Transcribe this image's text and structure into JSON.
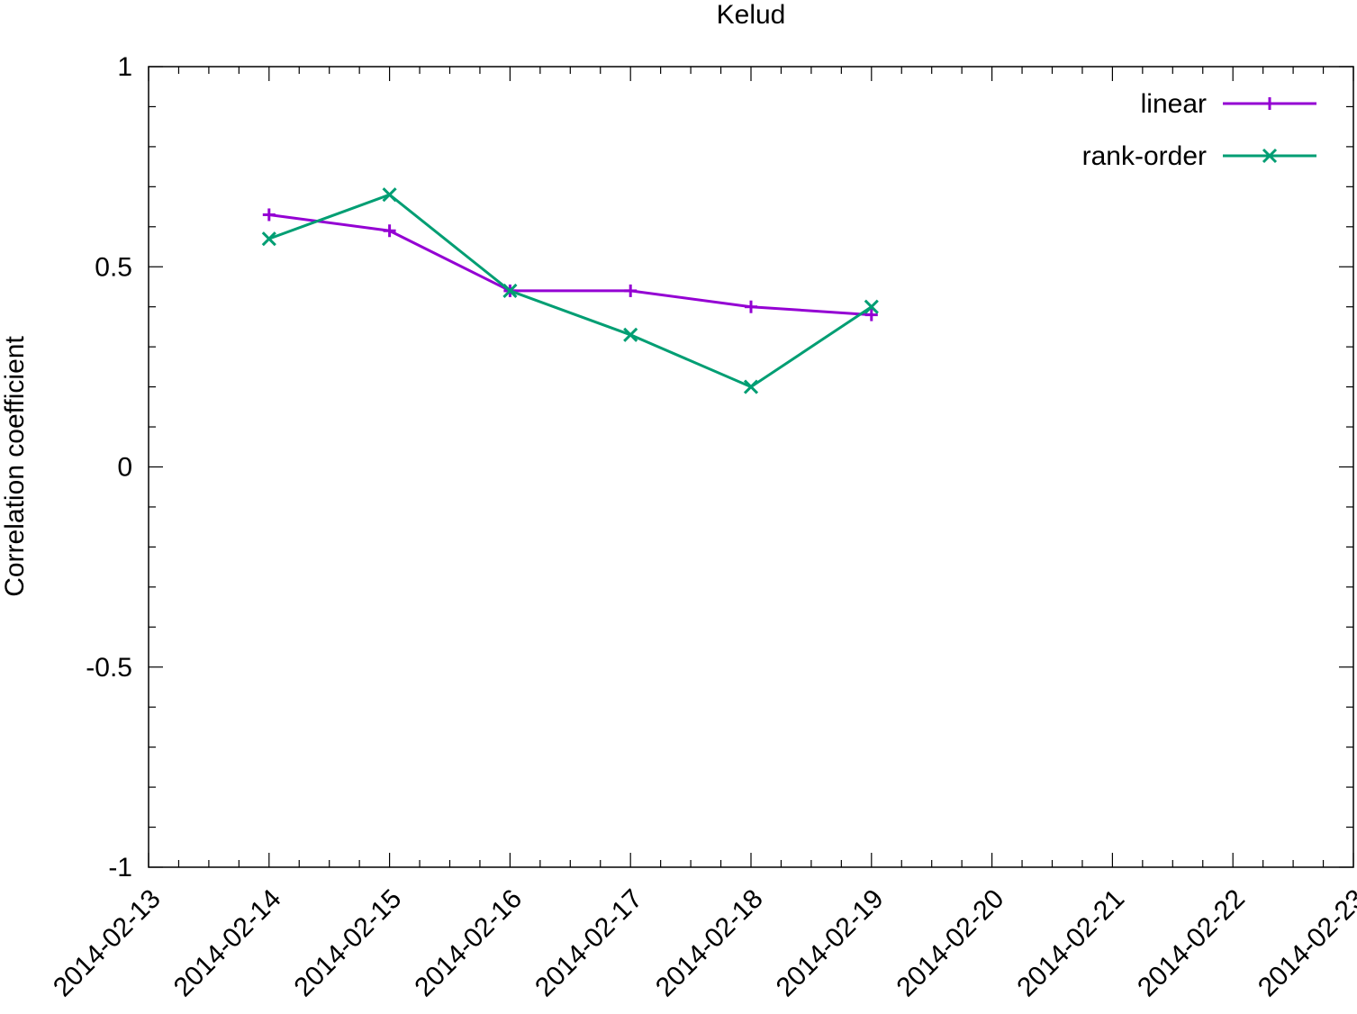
{
  "chart_data": {
    "type": "line",
    "title": "Kelud",
    "xlabel": "",
    "ylabel": "Correlation coefficient",
    "x_type": "date",
    "xlim": [
      "2014-02-13",
      "2014-02-23"
    ],
    "ylim": [
      -1,
      1
    ],
    "x_ticks": [
      "2014-02-13",
      "2014-02-14",
      "2014-02-15",
      "2014-02-16",
      "2014-02-17",
      "2014-02-18",
      "2014-02-19",
      "2014-02-20",
      "2014-02-21",
      "2014-02-22",
      "2014-02-23"
    ],
    "y_ticks": [
      {
        "value": 1,
        "label": "1"
      },
      {
        "value": 0.5,
        "label": "0.5"
      },
      {
        "value": 0,
        "label": "0"
      },
      {
        "value": -0.5,
        "label": "-0.5"
      },
      {
        "value": -1,
        "label": "-1"
      }
    ],
    "grid": false,
    "legend_position": "top-right",
    "series": [
      {
        "name": "linear",
        "color": "#9400d3",
        "marker": "plus",
        "x": [
          "2014-02-14",
          "2014-02-15",
          "2014-02-16",
          "2014-02-17",
          "2014-02-18",
          "2014-02-19"
        ],
        "values": [
          0.63,
          0.59,
          0.44,
          0.44,
          0.4,
          0.38
        ]
      },
      {
        "name": "rank-order",
        "color": "#009e73",
        "marker": "cross",
        "x": [
          "2014-02-14",
          "2014-02-15",
          "2014-02-16",
          "2014-02-17",
          "2014-02-18",
          "2014-02-19"
        ],
        "values": [
          0.57,
          0.68,
          0.44,
          0.33,
          0.2,
          0.4
        ]
      }
    ]
  }
}
